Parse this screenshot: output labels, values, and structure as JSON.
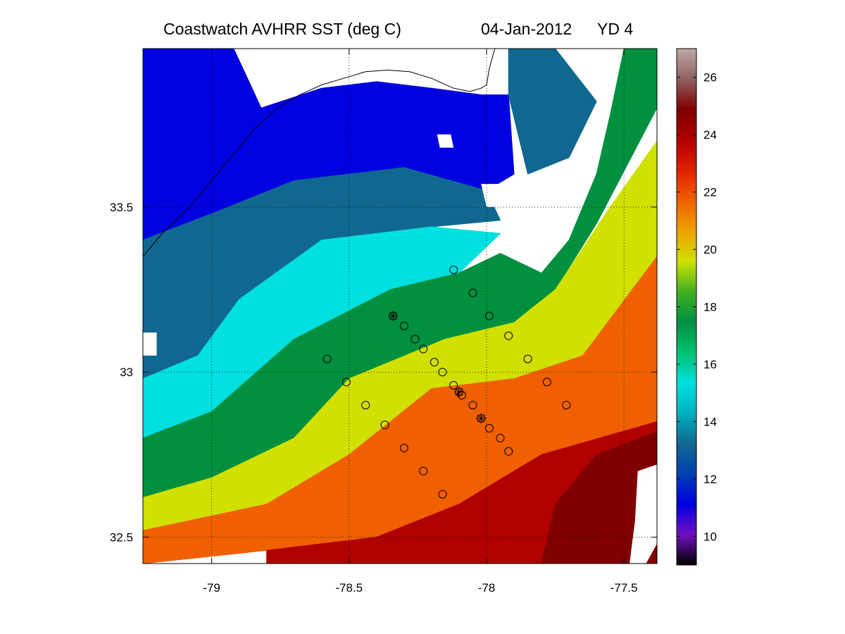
{
  "title": {
    "product": "Coastwatch   AVHRR   SST  (deg C)",
    "date": "04-Jan-2012",
    "yearday": "YD 4"
  },
  "chart_data": {
    "type": "heatmap",
    "xlim": [
      -79.25,
      -77.38
    ],
    "ylim": [
      32.42,
      33.98
    ],
    "x_ticks": [
      -79,
      -78.5,
      -78,
      -77.5
    ],
    "x_tick_labels": [
      "-79",
      "-78.5",
      "-78",
      "-77.5"
    ],
    "y_ticks": [
      32.5,
      33,
      33.5
    ],
    "y_tick_labels": [
      "32.5",
      "33",
      "33.5"
    ],
    "grid": "dotted",
    "colorbar": {
      "range": [
        9,
        27
      ],
      "ticks": [
        10,
        12,
        14,
        16,
        18,
        20,
        22,
        24,
        26
      ],
      "tick_labels": [
        "10",
        "12",
        "14",
        "16",
        "18",
        "20",
        "22",
        "24",
        "26"
      ],
      "placement": "right",
      "colormap": [
        "#000000",
        "#7010c0",
        "#0000e0",
        "#0040b0",
        "#106890",
        "#00b0c0",
        "#00e0e0",
        "#00c070",
        "#009040",
        "#40b020",
        "#d0e000",
        "#f0a000",
        "#f06000",
        "#e02000",
        "#b00000",
        "#800000",
        "#906060",
        "#c0a8a8"
      ]
    },
    "stations_circle": [
      {
        "lon": -78.12,
        "lat": 33.31
      },
      {
        "lon": -78.05,
        "lat": 33.24
      },
      {
        "lon": -77.99,
        "lat": 33.17
      },
      {
        "lon": -77.92,
        "lat": 33.11
      },
      {
        "lon": -77.85,
        "lat": 33.04
      },
      {
        "lon": -77.78,
        "lat": 32.97
      },
      {
        "lon": -77.71,
        "lat": 32.9
      },
      {
        "lon": -78.58,
        "lat": 33.04
      },
      {
        "lon": -78.51,
        "lat": 32.97
      },
      {
        "lon": -78.44,
        "lat": 32.9
      },
      {
        "lon": -78.37,
        "lat": 32.84
      },
      {
        "lon": -78.3,
        "lat": 32.77
      },
      {
        "lon": -78.23,
        "lat": 32.7
      },
      {
        "lon": -78.16,
        "lat": 32.63
      },
      {
        "lon": -78.3,
        "lat": 33.14
      },
      {
        "lon": -78.26,
        "lat": 33.1
      },
      {
        "lon": -78.23,
        "lat": 33.07
      },
      {
        "lon": -78.19,
        "lat": 33.03
      },
      {
        "lon": -78.16,
        "lat": 33.0
      },
      {
        "lon": -78.12,
        "lat": 32.96
      },
      {
        "lon": -78.09,
        "lat": 32.93
      },
      {
        "lon": -78.05,
        "lat": 32.9
      },
      {
        "lon": -77.99,
        "lat": 32.83
      },
      {
        "lon": -77.95,
        "lat": 32.8
      },
      {
        "lon": -77.92,
        "lat": 32.76
      }
    ],
    "stations_star": [
      {
        "lon": -78.34,
        "lat": 33.17
      },
      {
        "lon": -78.1,
        "lat": 32.94
      },
      {
        "lon": -78.02,
        "lat": 32.86
      }
    ],
    "sst_regions": [
      {
        "value": 11,
        "coords": [
          [
            -79.25,
            33.98
          ],
          [
            -78.92,
            33.98
          ],
          [
            -78.82,
            33.8
          ],
          [
            -78.6,
            33.86
          ],
          [
            -78.4,
            33.88
          ],
          [
            -78.2,
            33.86
          ],
          [
            -78.02,
            33.84
          ],
          [
            -77.92,
            33.84
          ],
          [
            -77.9,
            33.6
          ],
          [
            -78.0,
            33.55
          ],
          [
            -78.3,
            33.62
          ],
          [
            -78.7,
            33.58
          ],
          [
            -79.0,
            33.48
          ],
          [
            -79.25,
            33.4
          ]
        ]
      },
      {
        "value": 13,
        "coords": [
          [
            -79.25,
            33.4
          ],
          [
            -79.0,
            33.48
          ],
          [
            -78.7,
            33.58
          ],
          [
            -78.3,
            33.62
          ],
          [
            -78.0,
            33.55
          ],
          [
            -77.95,
            33.46
          ],
          [
            -78.2,
            33.44
          ],
          [
            -78.6,
            33.4
          ],
          [
            -78.9,
            33.22
          ],
          [
            -79.05,
            33.05
          ],
          [
            -79.25,
            32.98
          ]
        ]
      },
      {
        "value": 15,
        "coords": [
          [
            -79.25,
            32.98
          ],
          [
            -79.05,
            33.05
          ],
          [
            -78.9,
            33.22
          ],
          [
            -78.6,
            33.4
          ],
          [
            -78.2,
            33.44
          ],
          [
            -77.95,
            33.42
          ],
          [
            -78.1,
            33.3
          ],
          [
            -78.35,
            33.25
          ],
          [
            -78.7,
            33.1
          ],
          [
            -79.0,
            32.88
          ],
          [
            -79.25,
            32.8
          ]
        ]
      },
      {
        "value": 13,
        "coords": [
          [
            -77.92,
            33.98
          ],
          [
            -77.75,
            33.98
          ],
          [
            -77.6,
            33.82
          ],
          [
            -77.7,
            33.65
          ],
          [
            -77.85,
            33.6
          ],
          [
            -77.92,
            33.84
          ]
        ]
      },
      {
        "value": 17.5,
        "coords": [
          [
            -79.25,
            32.8
          ],
          [
            -79.0,
            32.88
          ],
          [
            -78.7,
            33.1
          ],
          [
            -78.35,
            33.25
          ],
          [
            -78.1,
            33.3
          ],
          [
            -77.95,
            33.36
          ],
          [
            -77.8,
            33.3
          ],
          [
            -77.7,
            33.4
          ],
          [
            -77.6,
            33.6
          ],
          [
            -77.55,
            33.78
          ],
          [
            -77.5,
            33.98
          ],
          [
            -77.38,
            33.98
          ],
          [
            -77.38,
            33.8
          ],
          [
            -77.6,
            33.45
          ],
          [
            -77.75,
            33.25
          ],
          [
            -77.9,
            33.15
          ],
          [
            -78.15,
            33.1
          ],
          [
            -78.5,
            32.98
          ],
          [
            -78.7,
            32.8
          ],
          [
            -79.0,
            32.68
          ],
          [
            -79.25,
            32.62
          ]
        ]
      },
      {
        "value": 19.5,
        "coords": [
          [
            -79.25,
            32.62
          ],
          [
            -79.0,
            32.68
          ],
          [
            -78.7,
            32.8
          ],
          [
            -78.5,
            32.98
          ],
          [
            -78.15,
            33.1
          ],
          [
            -77.9,
            33.15
          ],
          [
            -77.75,
            33.25
          ],
          [
            -77.55,
            33.5
          ],
          [
            -77.38,
            33.7
          ],
          [
            -77.38,
            33.35
          ],
          [
            -77.65,
            33.05
          ],
          [
            -77.9,
            32.98
          ],
          [
            -78.2,
            32.95
          ],
          [
            -78.5,
            32.75
          ],
          [
            -78.8,
            32.6
          ],
          [
            -79.25,
            32.52
          ]
        ]
      },
      {
        "value": 21.5,
        "coords": [
          [
            -79.25,
            32.52
          ],
          [
            -78.8,
            32.6
          ],
          [
            -78.5,
            32.75
          ],
          [
            -78.2,
            32.95
          ],
          [
            -77.9,
            32.98
          ],
          [
            -77.65,
            33.05
          ],
          [
            -77.38,
            33.35
          ],
          [
            -77.38,
            32.85
          ],
          [
            -77.8,
            32.75
          ],
          [
            -78.1,
            32.6
          ],
          [
            -78.4,
            32.5
          ],
          [
            -78.8,
            32.46
          ],
          [
            -79.25,
            32.42
          ]
        ]
      },
      {
        "value": 23.5,
        "coords": [
          [
            -78.8,
            32.42
          ],
          [
            -78.8,
            32.46
          ],
          [
            -78.4,
            32.5
          ],
          [
            -78.1,
            32.6
          ],
          [
            -77.8,
            32.75
          ],
          [
            -77.38,
            32.85
          ],
          [
            -77.38,
            32.42
          ]
        ]
      },
      {
        "value": 24.5,
        "coords": [
          [
            -77.8,
            32.42
          ],
          [
            -77.75,
            32.6
          ],
          [
            -77.6,
            32.75
          ],
          [
            -77.38,
            32.82
          ],
          [
            -77.38,
            32.42
          ]
        ]
      }
    ],
    "missing_regions": [
      [
        [
          -77.48,
          32.42
        ],
        [
          -77.42,
          32.42
        ],
        [
          -77.38,
          32.48
        ],
        [
          -77.38,
          32.72
        ],
        [
          -77.45,
          32.7
        ],
        [
          -77.46,
          32.55
        ]
      ],
      [
        [
          -78.02,
          33.57
        ],
        [
          -77.95,
          33.57
        ],
        [
          -77.93,
          33.5
        ],
        [
          -78.0,
          33.5
        ]
      ],
      [
        [
          -78.18,
          33.72
        ],
        [
          -78.13,
          33.72
        ],
        [
          -78.12,
          33.68
        ],
        [
          -78.17,
          33.68
        ]
      ],
      [
        [
          -79.25,
          33.12
        ],
        [
          -79.2,
          33.12
        ],
        [
          -79.2,
          33.05
        ],
        [
          -79.25,
          33.05
        ]
      ]
    ],
    "coastline": [
      [
        -79.25,
        33.35
      ],
      [
        -79.18,
        33.42
      ],
      [
        -79.08,
        33.5
      ],
      [
        -79.0,
        33.58
      ],
      [
        -78.92,
        33.66
      ],
      [
        -78.84,
        33.74
      ],
      [
        -78.76,
        33.8
      ],
      [
        -78.68,
        33.84
      ],
      [
        -78.6,
        33.87
      ],
      [
        -78.52,
        33.89
      ],
      [
        -78.44,
        33.91
      ],
      [
        -78.36,
        33.915
      ],
      [
        -78.28,
        33.91
      ],
      [
        -78.2,
        33.89
      ],
      [
        -78.12,
        33.86
      ],
      [
        -78.06,
        33.85
      ],
      [
        -78.02,
        33.86
      ],
      [
        -78.0,
        33.87
      ],
      [
        -77.99,
        33.92
      ],
      [
        -77.97,
        33.98
      ]
    ]
  }
}
